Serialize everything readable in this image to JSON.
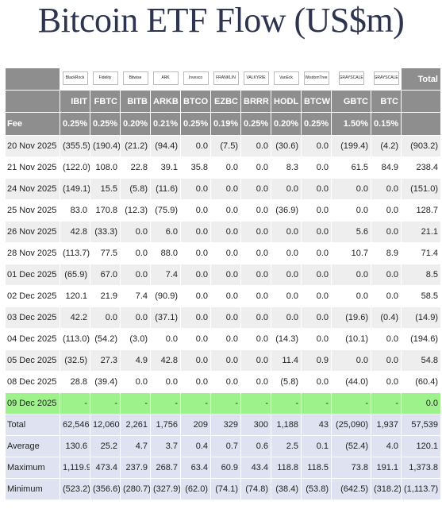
{
  "title": "Bitcoin ETF Flow (US$m)",
  "columns": [
    {
      "ticker": "IBIT",
      "fee": "0.25%",
      "logo": "BlackRock",
      "logo_icon": "blackrock-logo-icon"
    },
    {
      "ticker": "FBTC",
      "fee": "0.25%",
      "logo": "Fidelity",
      "logo_icon": "fidelity-logo-icon"
    },
    {
      "ticker": "BITB",
      "fee": "0.20%",
      "logo": "Bitwise",
      "logo_icon": "bitwise-logo-icon"
    },
    {
      "ticker": "ARKB",
      "fee": "0.21%",
      "logo": "ARK",
      "logo_icon": "ark-logo-icon"
    },
    {
      "ticker": "BTCO",
      "fee": "0.25%",
      "logo": "Invesco",
      "logo_icon": "invesco-logo-icon"
    },
    {
      "ticker": "EZBC",
      "fee": "0.19%",
      "logo": "FRANKLIN",
      "logo_icon": "franklin-logo-icon"
    },
    {
      "ticker": "BRRR",
      "fee": "0.25%",
      "logo": "VALKYRIE",
      "logo_icon": "valkyrie-logo-icon"
    },
    {
      "ticker": "HODL",
      "fee": "0.20%",
      "logo": "VanEck",
      "logo_icon": "vaneck-logo-icon"
    },
    {
      "ticker": "BTCW",
      "fee": "0.25%",
      "logo": "WisdomTree",
      "logo_icon": "wisdomtree-logo-icon"
    },
    {
      "ticker": "GBTC",
      "fee": "1.50%",
      "logo": "GRAYSCALE",
      "logo_icon": "grayscale-logo-icon"
    },
    {
      "ticker": "BTC",
      "fee": "0.15%",
      "logo": "GRAYSCALE",
      "logo_icon": "grayscale-logo-icon"
    }
  ],
  "header": {
    "total_label": "Total",
    "fee_label": "Fee"
  },
  "rows": [
    {
      "date": "20 Nov 2025",
      "values": [
        "(355.5)",
        "(190.4)",
        "(21.2)",
        "(94.4)",
        "0.0",
        "(7.5)",
        "0.0",
        "(30.6)",
        "0.0",
        "(199.4)",
        "(4.2)",
        "(903.2)"
      ]
    },
    {
      "date": "21 Nov 2025",
      "values": [
        "(122.0)",
        "108.0",
        "22.8",
        "39.1",
        "35.8",
        "0.0",
        "0.0",
        "8.3",
        "0.0",
        "61.5",
        "84.9",
        "238.4"
      ]
    },
    {
      "date": "24 Nov 2025",
      "values": [
        "(149.1)",
        "15.5",
        "(5.8)",
        "(11.6)",
        "0.0",
        "0.0",
        "0.0",
        "0.0",
        "0.0",
        "0.0",
        "0.0",
        "(151.0)"
      ]
    },
    {
      "date": "25 Nov 2025",
      "values": [
        "83.0",
        "170.8",
        "(12.3)",
        "(75.9)",
        "0.0",
        "0.0",
        "0.0",
        "(36.9)",
        "0.0",
        "0.0",
        "0.0",
        "128.7"
      ]
    },
    {
      "date": "26 Nov 2025",
      "values": [
        "42.8",
        "(33.3)",
        "0.0",
        "6.0",
        "0.0",
        "0.0",
        "0.0",
        "0.0",
        "0.0",
        "5.6",
        "0.0",
        "21.1"
      ]
    },
    {
      "date": "28 Nov 2025",
      "values": [
        "(113.7)",
        "77.5",
        "0.0",
        "88.0",
        "0.0",
        "0.0",
        "0.0",
        "0.0",
        "0.0",
        "10.7",
        "8.9",
        "71.4"
      ]
    },
    {
      "date": "01 Dec 2025",
      "values": [
        "(65.9)",
        "67.0",
        "0.0",
        "7.4",
        "0.0",
        "0.0",
        "0.0",
        "0.0",
        "0.0",
        "0.0",
        "0.0",
        "8.5"
      ]
    },
    {
      "date": "02 Dec 2025",
      "values": [
        "120.1",
        "21.9",
        "7.4",
        "(90.9)",
        "0.0",
        "0.0",
        "0.0",
        "0.0",
        "0.0",
        "0.0",
        "0.0",
        "58.5"
      ]
    },
    {
      "date": "03 Dec 2025",
      "values": [
        "42.2",
        "0.0",
        "0.0",
        "(37.1)",
        "0.0",
        "0.0",
        "0.0",
        "0.0",
        "0.0",
        "(19.6)",
        "(0.4)",
        "(14.9)"
      ]
    },
    {
      "date": "04 Dec 2025",
      "values": [
        "(113.0)",
        "(54.2)",
        "(3.0)",
        "0.0",
        "0.0",
        "0.0",
        "0.0",
        "(14.3)",
        "0.0",
        "(10.1)",
        "0.0",
        "(194.6)"
      ]
    },
    {
      "date": "05 Dec 2025",
      "values": [
        "(32.5)",
        "27.3",
        "4.9",
        "42.8",
        "0.0",
        "0.0",
        "0.0",
        "11.4",
        "0.9",
        "0.0",
        "0.0",
        "54.8"
      ]
    },
    {
      "date": "08 Dec 2025",
      "values": [
        "28.8",
        "(39.4)",
        "0.0",
        "0.0",
        "0.0",
        "0.0",
        "0.0",
        "(5.8)",
        "0.0",
        "(44.0)",
        "0.0",
        "(60.4)"
      ]
    }
  ],
  "pending_row": {
    "date": "09 Dec 2025",
    "values": [
      "-",
      "-",
      "-",
      "-",
      "-",
      "-",
      "-",
      "-",
      "-",
      "-",
      "-",
      "0.0"
    ]
  },
  "stats": [
    {
      "label": "Total",
      "values": [
        "62,546",
        "12,060",
        "2,261",
        "1,756",
        "209",
        "329",
        "300",
        "1,188",
        "43",
        "(25,090)",
        "1,937",
        "57,539"
      ]
    },
    {
      "label": "Average",
      "values": [
        "130.6",
        "25.2",
        "4.7",
        "3.7",
        "0.4",
        "0.7",
        "0.6",
        "2.5",
        "0.1",
        "(52.4)",
        "4.0",
        "120.1"
      ]
    },
    {
      "label": "Maximum",
      "values": [
        "1,119.9",
        "473.4",
        "237.9",
        "268.7",
        "63.4",
        "60.9",
        "43.4",
        "118.8",
        "118.5",
        "73.8",
        "191.1",
        "1,373.8"
      ]
    },
    {
      "label": "Minimum",
      "values": [
        "(523.2)",
        "(356.6)",
        "(280.7)",
        "(327.9)",
        "(62.0)",
        "(74.1)",
        "(74.8)",
        "(38.4)",
        "(53.8)",
        "(642.5)",
        "(318.2)",
        "(1,113.7)"
      ]
    }
  ],
  "colors": {
    "header_bg": "#8e8e8e",
    "negative": "#d62a2a",
    "pending_bg": "#9ef28b",
    "stats_bg": "#dfe3f1",
    "title": "#2d3450"
  }
}
